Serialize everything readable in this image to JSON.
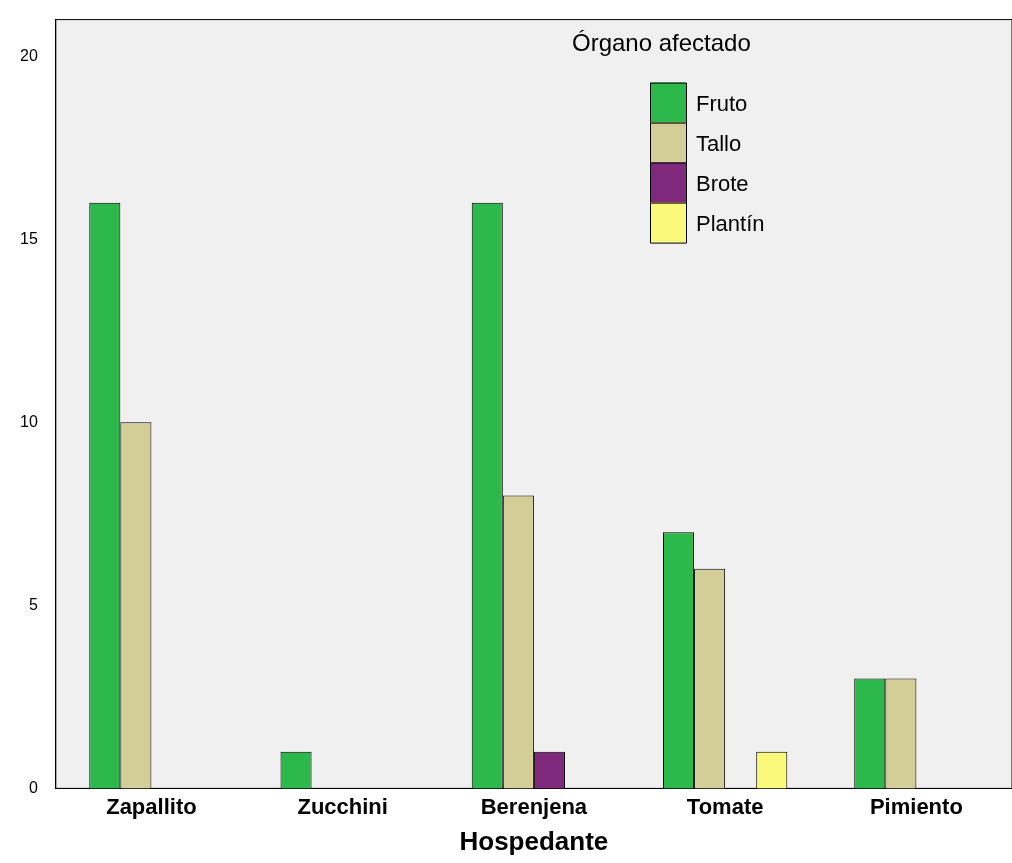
{
  "chart_data": {
    "type": "bar",
    "xlabel": "Hospedante",
    "legend_title": "Órgano afectado",
    "legend": "top right",
    "grid": false,
    "categories": [
      "Zapallito",
      "Zucchini",
      "Berenjena",
      "Tomate",
      "Pimiento"
    ],
    "series": [
      {
        "name": "Fruto",
        "color": "#2db84b",
        "values": [
          16,
          1,
          16,
          7,
          3
        ]
      },
      {
        "name": "Tallo",
        "color": "#d3ce98",
        "values": [
          10,
          null,
          8,
          6,
          3
        ]
      },
      {
        "name": "Brote",
        "color": "#7f2a7d",
        "values": [
          null,
          null,
          1,
          null,
          null
        ]
      },
      {
        "name": "Plantín",
        "color": "#fbf97b",
        "values": [
          null,
          null,
          null,
          1,
          null
        ]
      }
    ],
    "ylim": [
      0,
      21
    ],
    "yticks": [
      0,
      5,
      10,
      15,
      20
    ]
  }
}
